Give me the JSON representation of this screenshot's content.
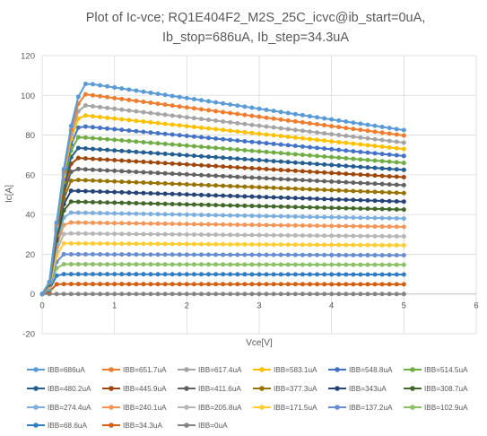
{
  "chart_data": {
    "type": "scatter",
    "title_lines": [
      "Plot of Ic-vce; RQ1E404F2_M2S_25C_icvc@ib_start=0uA,",
      "Ib_stop=686uA, Ib_step=34.3uA"
    ],
    "xlabel": "Vce[V]",
    "ylabel": "Ic[A]",
    "xlim": [
      0,
      6
    ],
    "ylim": [
      -20,
      120
    ],
    "xticks": [
      "0",
      "1",
      "2",
      "3",
      "4",
      "5",
      "6"
    ],
    "yticks": [
      "-20",
      "0",
      "20",
      "40",
      "60",
      "80",
      "100",
      "120"
    ],
    "grid": true,
    "legend_position": "bottom",
    "x_end": 5.0,
    "series": [
      {
        "name": "IBB=686uA",
        "color": "#5b9bd5",
        "plateau": 106.0,
        "end": 82.5
      },
      {
        "name": "IBB=651.7uA",
        "color": "#ed7d31",
        "plateau": 100.5,
        "end": 79.8
      },
      {
        "name": "IBB=617.4uA",
        "color": "#a5a5a5",
        "plateau": 95.0,
        "end": 76.2
      },
      {
        "name": "IBB=583.1uA",
        "color": "#ffc000",
        "plateau": 90.0,
        "end": 73.0
      },
      {
        "name": "IBB=548.8uA",
        "color": "#4472c4",
        "plateau": 84.5,
        "end": 69.5
      },
      {
        "name": "IBB=514.5uA",
        "color": "#70ad47",
        "plateau": 79.0,
        "end": 66.0
      },
      {
        "name": "IBB=480.2uA",
        "color": "#255e91",
        "plateau": 73.5,
        "end": 62.5
      },
      {
        "name": "IBB=445.9uA",
        "color": "#9e480e",
        "plateau": 68.5,
        "end": 58.8
      },
      {
        "name": "IBB=411.6uA",
        "color": "#636363",
        "plateau": 63.0,
        "end": 54.8
      },
      {
        "name": "IBB=377.3uA",
        "color": "#997300",
        "plateau": 57.5,
        "end": 50.8
      },
      {
        "name": "IBB=343uA",
        "color": "#264478",
        "plateau": 52.0,
        "end": 46.5
      },
      {
        "name": "IBB=308.7uA",
        "color": "#43682b",
        "plateau": 46.5,
        "end": 42.5
      },
      {
        "name": "IBB=274.4uA",
        "color": "#7cafdd",
        "plateau": 41.0,
        "end": 38.0
      },
      {
        "name": "IBB=240.1uA",
        "color": "#f1975a",
        "plateau": 36.0,
        "end": 33.8
      },
      {
        "name": "IBB=205.8uA",
        "color": "#b7b7b7",
        "plateau": 30.5,
        "end": 29.0
      },
      {
        "name": "IBB=171.5uA",
        "color": "#ffcd33",
        "plateau": 25.5,
        "end": 24.5
      },
      {
        "name": "IBB=137.2uA",
        "color": "#698ed0",
        "plateau": 20.0,
        "end": 19.5
      },
      {
        "name": "IBB=102.9uA",
        "color": "#8cc168",
        "plateau": 15.0,
        "end": 14.7
      },
      {
        "name": "IBB=68.6uA",
        "color": "#327dc2",
        "plateau": 10.0,
        "end": 9.8
      },
      {
        "name": "IBB=34.3uA",
        "color": "#d26012",
        "plateau": 5.0,
        "end": 4.9
      },
      {
        "name": "IBB=0uA",
        "color": "#848484",
        "plateau": 0.0,
        "end": 0.0
      }
    ]
  }
}
